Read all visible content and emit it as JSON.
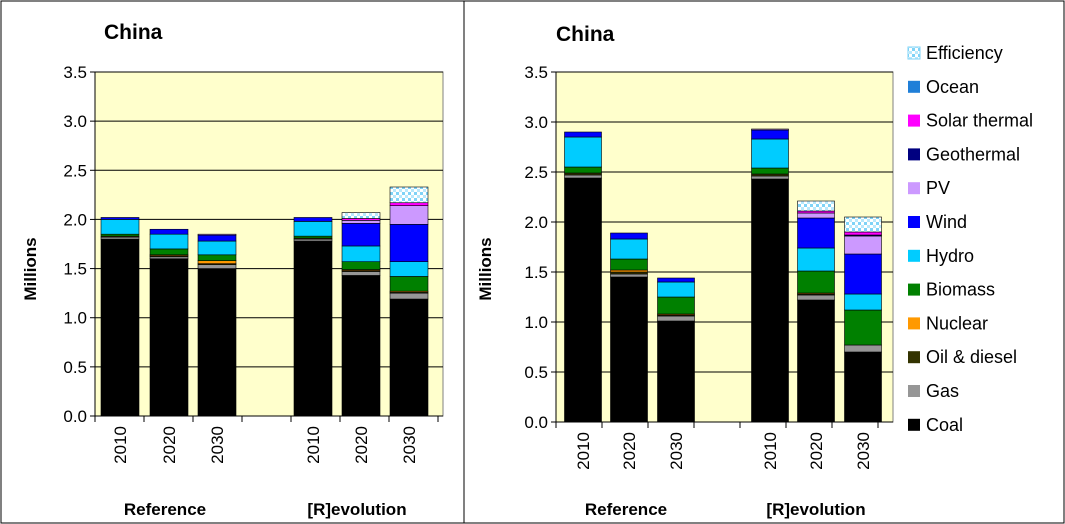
{
  "legend": [
    {
      "name": "Efficiency",
      "color": "#aee0f5",
      "pattern": true
    },
    {
      "name": "Ocean",
      "color": "#1f7fd8"
    },
    {
      "name": "Solar thermal",
      "color": "#ff00ff"
    },
    {
      "name": "Geothermal",
      "color": "#000080"
    },
    {
      "name": "PV",
      "color": "#cc99ff"
    },
    {
      "name": "Wind",
      "color": "#0000ff"
    },
    {
      "name": "Hydro",
      "color": "#00ccff"
    },
    {
      "name": "Biomass",
      "color": "#008000"
    },
    {
      "name": "Nuclear",
      "color": "#ff9900"
    },
    {
      "name": "Oil & diesel",
      "color": "#333300"
    },
    {
      "name": "Gas",
      "color": "#969696"
    },
    {
      "name": "Coal",
      "color": "#000000"
    }
  ],
  "chart_data": [
    {
      "type": "bar",
      "stacked": true,
      "title": "China",
      "ylabel": "Millions",
      "ylim": [
        0,
        3.5
      ],
      "yticks": [
        "0.0",
        "0.5",
        "1.0",
        "1.5",
        "2.0",
        "2.5",
        "3.0",
        "3.5"
      ],
      "groups": [
        "Reference",
        "[R]evolution"
      ],
      "categories": [
        "2010",
        "2020",
        "2030",
        "2010",
        "2020",
        "2030"
      ],
      "background": "#ffffcc",
      "series": [
        {
          "name": "Coal",
          "values": [
            1.8,
            1.6,
            1.5,
            1.78,
            1.43,
            1.19
          ]
        },
        {
          "name": "Gas",
          "values": [
            0.02,
            0.02,
            0.04,
            0.02,
            0.04,
            0.06
          ]
        },
        {
          "name": "Oil & diesel",
          "values": [
            0.01,
            0.01,
            0.01,
            0.01,
            0.01,
            0.01
          ]
        },
        {
          "name": "Nuclear",
          "values": [
            0.0,
            0.01,
            0.03,
            0.0,
            0.01,
            0.01
          ]
        },
        {
          "name": "Biomass",
          "values": [
            0.02,
            0.06,
            0.06,
            0.02,
            0.08,
            0.15
          ]
        },
        {
          "name": "Hydro",
          "values": [
            0.15,
            0.15,
            0.14,
            0.15,
            0.16,
            0.15
          ]
        },
        {
          "name": "Wind",
          "values": [
            0.02,
            0.05,
            0.06,
            0.04,
            0.23,
            0.38
          ]
        },
        {
          "name": "PV",
          "values": [
            0.0,
            0.0,
            0.01,
            0.0,
            0.03,
            0.19
          ]
        },
        {
          "name": "Geothermal",
          "values": [
            0.0,
            0.0,
            0.0,
            0.0,
            0.0,
            0.0
          ]
        },
        {
          "name": "Solar thermal",
          "values": [
            0.0,
            0.0,
            0.0,
            0.0,
            0.02,
            0.03
          ]
        },
        {
          "name": "Ocean",
          "values": [
            0.0,
            0.0,
            0.0,
            0.0,
            0.0,
            0.0
          ]
        },
        {
          "name": "Efficiency",
          "values": [
            0.0,
            0.0,
            0.0,
            0.0,
            0.06,
            0.16
          ]
        }
      ]
    },
    {
      "type": "bar",
      "stacked": true,
      "title": "China",
      "ylabel": "Millions",
      "ylim": [
        0,
        3.5
      ],
      "yticks": [
        "0.0",
        "0.5",
        "1.0",
        "1.5",
        "2.0",
        "2.5",
        "3.0",
        "3.5"
      ],
      "groups": [
        "Reference",
        "[R]evolution"
      ],
      "categories": [
        "2010",
        "2020",
        "2030",
        "2010",
        "2020",
        "2030"
      ],
      "background": "#ffffcc",
      "series": [
        {
          "name": "Coal",
          "values": [
            2.44,
            1.45,
            1.01,
            2.43,
            1.22,
            0.7
          ]
        },
        {
          "name": "Gas",
          "values": [
            0.03,
            0.03,
            0.05,
            0.03,
            0.05,
            0.07
          ]
        },
        {
          "name": "Oil & diesel",
          "values": [
            0.02,
            0.02,
            0.01,
            0.02,
            0.01,
            0.0
          ]
        },
        {
          "name": "Nuclear",
          "values": [
            0.0,
            0.02,
            0.01,
            0.0,
            0.01,
            0.0
          ]
        },
        {
          "name": "Biomass",
          "values": [
            0.06,
            0.11,
            0.17,
            0.06,
            0.22,
            0.35
          ]
        },
        {
          "name": "Hydro",
          "values": [
            0.3,
            0.2,
            0.15,
            0.29,
            0.23,
            0.16
          ]
        },
        {
          "name": "Wind",
          "values": [
            0.05,
            0.06,
            0.04,
            0.09,
            0.3,
            0.4
          ]
        },
        {
          "name": "PV",
          "values": [
            0.0,
            0.0,
            0.0,
            0.01,
            0.05,
            0.18
          ]
        },
        {
          "name": "Geothermal",
          "values": [
            0.0,
            0.0,
            0.0,
            0.0,
            0.0,
            0.01
          ]
        },
        {
          "name": "Solar thermal",
          "values": [
            0.0,
            0.0,
            0.0,
            0.0,
            0.02,
            0.03
          ]
        },
        {
          "name": "Ocean",
          "values": [
            0.0,
            0.0,
            0.0,
            0.0,
            0.0,
            0.0
          ]
        },
        {
          "name": "Efficiency",
          "values": [
            0.0,
            0.0,
            0.0,
            0.0,
            0.1,
            0.15
          ]
        }
      ]
    }
  ]
}
